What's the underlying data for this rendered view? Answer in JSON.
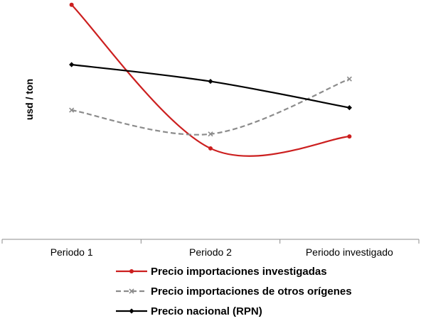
{
  "chart_data": {
    "type": "line",
    "title": "",
    "xlabel": "",
    "ylabel": "usd / ton",
    "categories": [
      "Periodo 1",
      "Periodo 2",
      "Periodo investigado"
    ],
    "ylim": [
      0,
      100
    ],
    "grid": false,
    "y_tick_labels_shown": false,
    "smoothed": true,
    "legend_position": "bottom",
    "series": [
      {
        "name": "Precio importaciones investigadas",
        "values": [
          98,
          38,
          43
        ],
        "color": "#cc1f1f",
        "dash": "solid",
        "marker": "circle"
      },
      {
        "name": "Precio importaciones de otros orígenes",
        "values": [
          54,
          44,
          67
        ],
        "color": "#8c8c8c",
        "dash": "dashed",
        "marker": "x"
      },
      {
        "name": "Precio nacional (RPN)",
        "values": [
          73,
          66,
          55
        ],
        "color": "#000000",
        "dash": "solid",
        "marker": "diamond"
      }
    ]
  }
}
